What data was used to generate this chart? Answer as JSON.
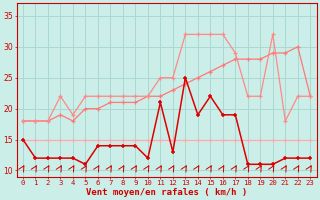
{
  "x": [
    0,
    1,
    2,
    3,
    4,
    5,
    6,
    7,
    8,
    9,
    10,
    11,
    12,
    13,
    14,
    15,
    16,
    17,
    18,
    19,
    20,
    21,
    22,
    23
  ],
  "line_rafales_top": [
    18,
    18,
    18,
    22,
    19,
    22,
    22,
    22,
    22,
    22,
    22,
    25,
    25,
    32,
    32,
    32,
    32,
    29,
    22,
    22,
    32,
    18,
    22,
    22
  ],
  "line_moyen_flat": [
    15,
    15,
    15,
    15,
    15,
    15,
    15,
    15,
    15,
    15,
    15,
    15,
    15,
    15,
    15,
    15,
    15,
    15,
    15,
    15,
    15,
    15,
    15,
    15
  ],
  "line_moyen_dark": [
    15,
    12,
    12,
    12,
    12,
    11,
    14,
    14,
    14,
    14,
    12,
    21,
    13,
    25,
    19,
    22,
    19,
    19,
    11,
    11,
    11,
    12,
    12,
    12
  ],
  "line_rafales_trend": [
    18,
    18,
    18,
    19,
    18,
    20,
    20,
    21,
    21,
    21,
    22,
    22,
    23,
    24,
    25,
    26,
    27,
    28,
    28,
    28,
    29,
    29,
    30,
    22
  ],
  "background_color": "#cceee8",
  "grid_color": "#aad8d0",
  "color_light": "#ffaaaa",
  "color_medium": "#ff8888",
  "color_dark": "#dd0000",
  "color_trend": "#ff7777",
  "xlabel": "Vent moyen/en rafales ( km/h )",
  "ylim": [
    9,
    37
  ],
  "yticks": [
    10,
    15,
    20,
    25,
    30,
    35
  ],
  "xlim": [
    -0.5,
    23.5
  ],
  "figsize": [
    3.2,
    2.0
  ],
  "dpi": 100
}
